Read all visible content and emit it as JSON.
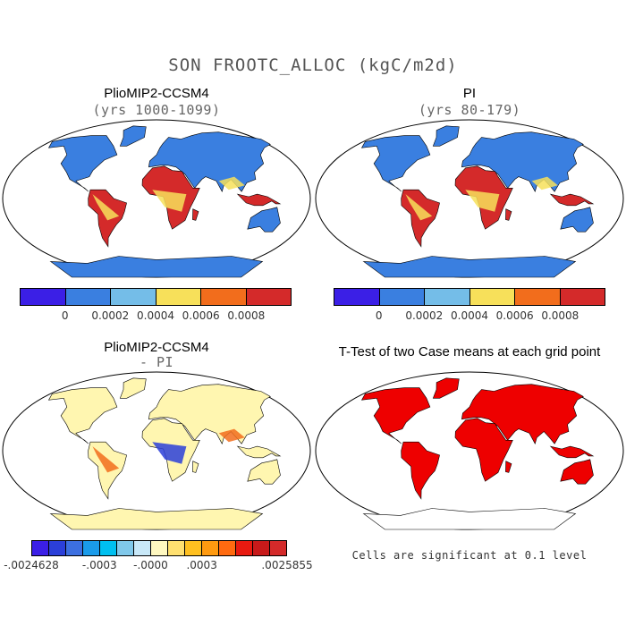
{
  "title": "SON FROOTC_ALLOC (kgC/m2d)",
  "panels": [
    {
      "title": "PlioMIP2-CCSM4",
      "subtitle": "(yrs 1000-1099)"
    },
    {
      "title": "PI",
      "subtitle": "(yrs 80-179)"
    },
    {
      "title": "PlioMIP2-CCSM4",
      "subtitle": "- PI"
    },
    {
      "title": "T-Test of two Case means at each grid point",
      "subtitle": ""
    }
  ],
  "colorbar_top": {
    "colors": [
      "#3b1fe6",
      "#3a7fe0",
      "#74bde8",
      "#f7e05a",
      "#f26d1c",
      "#d42a2a"
    ],
    "tick_labels": [
      "0",
      "0.0002",
      "0.0004",
      "0.0006",
      "0.0008"
    ]
  },
  "colorbar_diff": {
    "colors": [
      "#3b1fe6",
      "#2b3fd9",
      "#3c6fe0",
      "#1a9bea",
      "#00c0f0",
      "#80c8ea",
      "#c8e8f8",
      "#fff8c0",
      "#ffe070",
      "#ffc020",
      "#ff9a10",
      "#ff6a10",
      "#e81a10",
      "#c81a1a",
      "#d42a2a"
    ],
    "tick_labels": [
      "-.0024628",
      "-.0003",
      "-.0000",
      ".0003",
      ".0025855"
    ]
  },
  "note": "Cells are significant at 0.1 level",
  "map_colors": {
    "ocean": "#ffffff",
    "land_low": "#3a7fe0",
    "land_yellow": "#f7e05a",
    "land_red": "#d42a2a",
    "diff_base": "#fff6b0",
    "sig": "#ee0000"
  }
}
